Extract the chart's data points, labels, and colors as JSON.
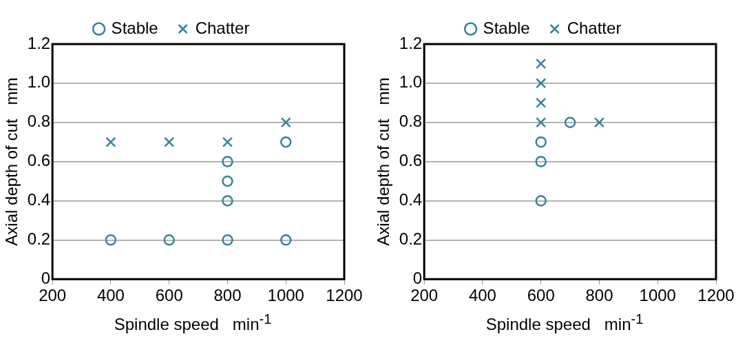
{
  "chart_data": [
    {
      "type": "scatter",
      "xlabel": "Spindle speed   min$^{-1}$",
      "ylabel": "Axial depth of cut   mm",
      "xlim": [
        200,
        1200
      ],
      "xticks": [
        200,
        400,
        600,
        800,
        1000,
        1200
      ],
      "ylim": [
        0,
        1.2
      ],
      "yticks": [
        0,
        0.2,
        0.4,
        0.6,
        0.8,
        {
          "value": 1,
          "label": "1.0"
        },
        1.2
      ],
      "grid": "y",
      "legend": "top",
      "series": [
        {
          "name": "Stable",
          "color": "#31859c",
          "marker": "circle",
          "x": [
            400,
            600,
            800,
            1000,
            800,
            800,
            800,
            1000
          ],
          "values": [
            0.2,
            0.2,
            0.2,
            0.2,
            0.4,
            0.5,
            0.6,
            0.7
          ]
        },
        {
          "name": "Chatter",
          "color": "#31859c",
          "marker": "cross",
          "x": [
            400,
            600,
            800,
            1000
          ],
          "values": [
            0.7,
            0.7,
            0.7,
            0.8
          ]
        }
      ]
    },
    {
      "type": "scatter",
      "xlabel": "Spindle speed   min$^{-1}$",
      "ylabel": "Axial depth of cut   mm",
      "xlim": [
        200,
        1200
      ],
      "xticks": [
        200,
        400,
        600,
        800,
        1000,
        1200
      ],
      "ylim": [
        0,
        1.2
      ],
      "yticks": [
        0,
        0.2,
        0.4,
        0.6,
        0.8,
        {
          "value": 1,
          "label": "1.0"
        },
        1.2
      ],
      "grid": "y",
      "legend": "top",
      "series": [
        {
          "name": "Stable",
          "color": "#31859c",
          "marker": "circle",
          "x": [
            600,
            600,
            600,
            700
          ],
          "values": [
            0.4,
            0.6,
            0.7,
            0.8
          ]
        },
        {
          "name": "Chatter",
          "color": "#31859c",
          "marker": "cross",
          "x": [
            600,
            600,
            600,
            600,
            800
          ],
          "values": [
            0.8,
            0.9,
            1.0,
            1.1,
            0.8
          ]
        }
      ]
    }
  ]
}
